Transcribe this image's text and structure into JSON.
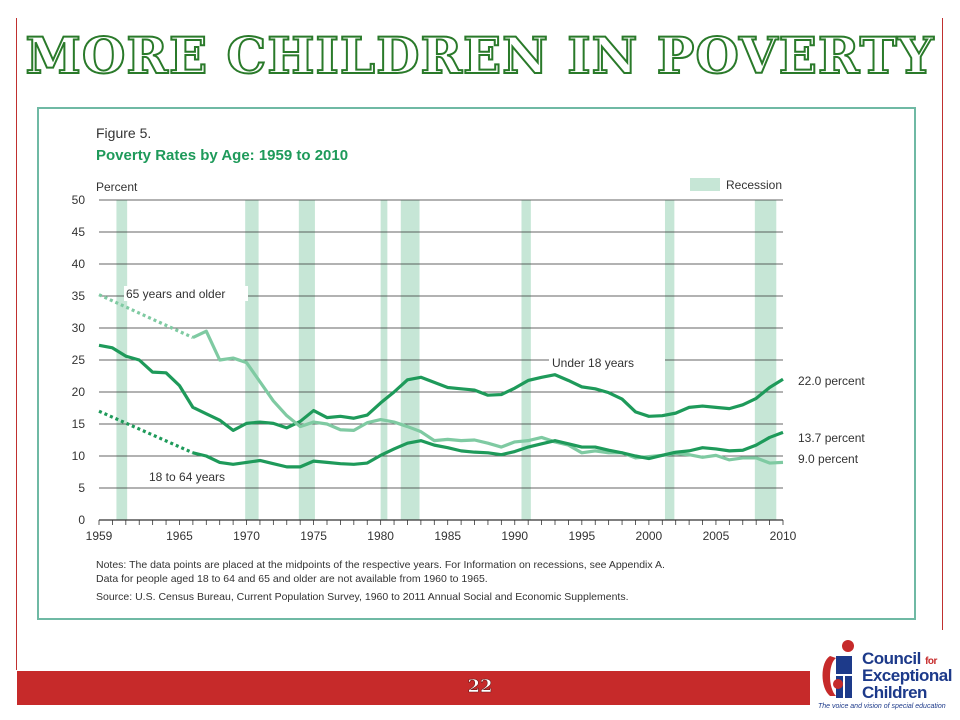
{
  "slide": {
    "title": "MORE CHILDREN IN POVERTY",
    "page_number": "22"
  },
  "logo": {
    "line1": "Council",
    "line1_small": "for",
    "line2": "Exceptional",
    "line3": "Children",
    "tagline": "The voice and vision of special education"
  },
  "colors": {
    "frame": "#c0302f",
    "footer": "#c62a2a",
    "dark_green": "#1e9a5a",
    "light_green": "#7fcaa2",
    "recession": "#c6e6d6",
    "figure_title": "#1e9a5a",
    "logo_blue": "#1d3a8a"
  },
  "chart_data": {
    "type": "line",
    "figure_label": "Figure 5.",
    "title": "Poverty Rates by Age: 1959 to 2010",
    "ylabel": "Percent",
    "ylim": [
      0,
      50
    ],
    "xlim": [
      1959,
      2010
    ],
    "y_ticks": [
      0,
      5,
      10,
      15,
      20,
      25,
      30,
      35,
      40,
      45,
      50
    ],
    "x_tick_labels": [
      "1959",
      "1965",
      "1970",
      "1975",
      "1980",
      "1985",
      "1990",
      "1995",
      "2000",
      "2005",
      "2010"
    ],
    "grid": true,
    "legend": [
      {
        "label": "Recession",
        "position": "top-right"
      }
    ],
    "recessions": [
      [
        1960.3,
        1961.1
      ],
      [
        1969.9,
        1970.9
      ],
      [
        1973.9,
        1975.1
      ],
      [
        1980.0,
        1980.5
      ],
      [
        1981.5,
        1982.9
      ],
      [
        1990.5,
        1991.2
      ],
      [
        2001.2,
        2001.9
      ],
      [
        2007.9,
        2009.5
      ]
    ],
    "series": [
      {
        "name": "Under 18 years",
        "color": "#1e9a5a",
        "values": [
          [
            1959,
            27.3
          ],
          [
            1960,
            26.9
          ],
          [
            1961,
            25.6
          ],
          [
            1962,
            25.0
          ],
          [
            1963,
            23.1
          ],
          [
            1964,
            23.0
          ],
          [
            1965,
            21.0
          ],
          [
            1966,
            17.6
          ],
          [
            1967,
            16.6
          ],
          [
            1968,
            15.6
          ],
          [
            1969,
            14.0
          ],
          [
            1970,
            15.1
          ],
          [
            1971,
            15.3
          ],
          [
            1972,
            15.1
          ],
          [
            1973,
            14.4
          ],
          [
            1974,
            15.4
          ],
          [
            1975,
            17.1
          ],
          [
            1976,
            16.0
          ],
          [
            1977,
            16.2
          ],
          [
            1978,
            15.9
          ],
          [
            1979,
            16.4
          ],
          [
            1980,
            18.3
          ],
          [
            1981,
            20.0
          ],
          [
            1982,
            21.9
          ],
          [
            1983,
            22.3
          ],
          [
            1984,
            21.5
          ],
          [
            1985,
            20.7
          ],
          [
            1986,
            20.5
          ],
          [
            1987,
            20.3
          ],
          [
            1988,
            19.5
          ],
          [
            1989,
            19.6
          ],
          [
            1990,
            20.6
          ],
          [
            1991,
            21.8
          ],
          [
            1992,
            22.3
          ],
          [
            1993,
            22.7
          ],
          [
            1994,
            21.8
          ],
          [
            1995,
            20.8
          ],
          [
            1996,
            20.5
          ],
          [
            1997,
            19.9
          ],
          [
            1998,
            18.9
          ],
          [
            1999,
            16.9
          ],
          [
            2000,
            16.2
          ],
          [
            2001,
            16.3
          ],
          [
            2002,
            16.7
          ],
          [
            2003,
            17.6
          ],
          [
            2004,
            17.8
          ],
          [
            2005,
            17.6
          ],
          [
            2006,
            17.4
          ],
          [
            2007,
            18.0
          ],
          [
            2008,
            19.0
          ],
          [
            2009,
            20.7
          ],
          [
            2010,
            22.0
          ]
        ]
      },
      {
        "name": "65 years and older",
        "color": "#7fcaa2",
        "dotted_estimate": [
          [
            1959,
            35.2
          ],
          [
            1966,
            28.5
          ]
        ],
        "values": [
          [
            1966,
            28.5
          ],
          [
            1967,
            29.5
          ],
          [
            1968,
            25.0
          ],
          [
            1969,
            25.3
          ],
          [
            1970,
            24.6
          ],
          [
            1971,
            21.6
          ],
          [
            1972,
            18.6
          ],
          [
            1973,
            16.3
          ],
          [
            1974,
            14.6
          ],
          [
            1975,
            15.3
          ],
          [
            1976,
            15.0
          ],
          [
            1977,
            14.1
          ],
          [
            1978,
            14.0
          ],
          [
            1979,
            15.2
          ],
          [
            1980,
            15.7
          ],
          [
            1981,
            15.3
          ],
          [
            1982,
            14.6
          ],
          [
            1983,
            13.8
          ],
          [
            1984,
            12.4
          ],
          [
            1985,
            12.6
          ],
          [
            1986,
            12.4
          ],
          [
            1987,
            12.5
          ],
          [
            1988,
            12.0
          ],
          [
            1989,
            11.4
          ],
          [
            1990,
            12.2
          ],
          [
            1991,
            12.4
          ],
          [
            1992,
            12.9
          ],
          [
            1993,
            12.2
          ],
          [
            1994,
            11.7
          ],
          [
            1995,
            10.5
          ],
          [
            1996,
            10.8
          ],
          [
            1997,
            10.5
          ],
          [
            1998,
            10.5
          ],
          [
            1999,
            9.7
          ],
          [
            2000,
            9.9
          ],
          [
            2001,
            10.1
          ],
          [
            2002,
            10.4
          ],
          [
            2003,
            10.2
          ],
          [
            2004,
            9.8
          ],
          [
            2005,
            10.1
          ],
          [
            2006,
            9.4
          ],
          [
            2007,
            9.7
          ],
          [
            2008,
            9.7
          ],
          [
            2009,
            8.9
          ],
          [
            2010,
            9.0
          ]
        ]
      },
      {
        "name": "18 to 64 years",
        "color": "#1e9a5a",
        "dotted_estimate": [
          [
            1959,
            17.0
          ],
          [
            1966,
            10.5
          ]
        ],
        "values": [
          [
            1966,
            10.5
          ],
          [
            1967,
            10.0
          ],
          [
            1968,
            9.0
          ],
          [
            1969,
            8.7
          ],
          [
            1970,
            9.0
          ],
          [
            1971,
            9.3
          ],
          [
            1972,
            8.8
          ],
          [
            1973,
            8.3
          ],
          [
            1974,
            8.3
          ],
          [
            1975,
            9.2
          ],
          [
            1976,
            9.0
          ],
          [
            1977,
            8.8
          ],
          [
            1978,
            8.7
          ],
          [
            1979,
            8.9
          ],
          [
            1980,
            10.1
          ],
          [
            1981,
            11.1
          ],
          [
            1982,
            12.0
          ],
          [
            1983,
            12.4
          ],
          [
            1984,
            11.7
          ],
          [
            1985,
            11.3
          ],
          [
            1986,
            10.8
          ],
          [
            1987,
            10.6
          ],
          [
            1988,
            10.5
          ],
          [
            1989,
            10.2
          ],
          [
            1990,
            10.7
          ],
          [
            1991,
            11.4
          ],
          [
            1992,
            11.9
          ],
          [
            1993,
            12.4
          ],
          [
            1994,
            11.9
          ],
          [
            1995,
            11.4
          ],
          [
            1996,
            11.4
          ],
          [
            1997,
            10.9
          ],
          [
            1998,
            10.5
          ],
          [
            1999,
            10.0
          ],
          [
            2000,
            9.6
          ],
          [
            2001,
            10.1
          ],
          [
            2002,
            10.6
          ],
          [
            2003,
            10.8
          ],
          [
            2004,
            11.3
          ],
          [
            2005,
            11.1
          ],
          [
            2006,
            10.8
          ],
          [
            2007,
            10.9
          ],
          [
            2008,
            11.7
          ],
          [
            2009,
            12.9
          ],
          [
            2010,
            13.7
          ]
        ]
      }
    ],
    "series_labels": [
      "Under 18 years",
      "65 years and older",
      "18 to 64 years"
    ],
    "end_labels": [
      "22.0 percent",
      "13.7 percent",
      "9.0 percent"
    ],
    "notes": [
      "Notes:  The data points are placed at the midpoints of the respective years. For Information on recessions, see Appendix A.",
      "Data for people aged 18 to 64 and 65 and older are not available from 1960 to 1965.",
      "Source:  U.S. Census Bureau, Current Population Survey, 1960 to 2011 Annual Social and Economic Supplements."
    ]
  }
}
